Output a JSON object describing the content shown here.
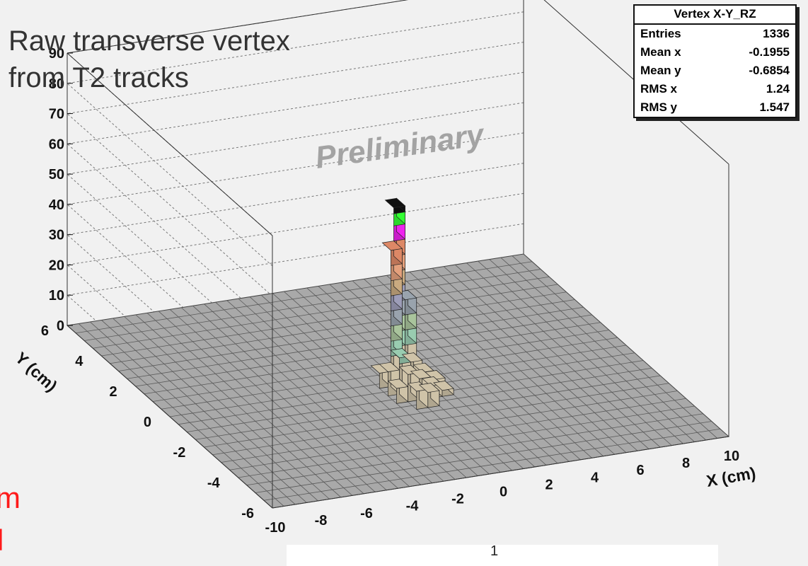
{
  "title": [
    "Raw transverse vertex",
    "from T2 tracks"
  ],
  "watermark": "Preliminary",
  "stats_box": {
    "title": "Vertex X-Y_RZ",
    "rows": [
      {
        "label": "Entries",
        "value": "1336"
      },
      {
        "label": "Mean x",
        "value": "-0.1955"
      },
      {
        "label": "Mean y",
        "value": "-0.6854"
      },
      {
        "label": "RMS x",
        "value": "1.24"
      },
      {
        "label": "RMS y",
        "value": "1.547"
      }
    ]
  },
  "side_text": [
    "m",
    "l"
  ],
  "bottom_fragment": "1",
  "chart_data": {
    "type": "lego",
    "title": "Raw transverse vertex from T2 tracks",
    "xlabel": "X (cm)",
    "ylabel": "Y (cm)",
    "zlabel": "",
    "xlim": [
      -10,
      10
    ],
    "ylim": [
      -6,
      6
    ],
    "zlim": [
      0,
      90
    ],
    "x_ticks": [
      "-10",
      "-8",
      "-6",
      "-4",
      "-2",
      "0",
      "2",
      "4",
      "6",
      "8",
      "10"
    ],
    "y_ticks": [
      "-6",
      "-4",
      "-2",
      "0",
      "2",
      "4",
      "6"
    ],
    "z_ticks": [
      "0",
      "10",
      "20",
      "30",
      "40",
      "50",
      "60",
      "70",
      "80",
      "90"
    ],
    "grid": true,
    "colors": {
      "floor": "#a9a9a9",
      "black": "#111111",
      "green": "#33ff33",
      "magenta": "#ee22ee",
      "salmon": "#dd8866",
      "peach": "#e4a07c",
      "tan": "#c9aa80",
      "lavender": "#9d9db8",
      "grayblue": "#99a3ad",
      "sage": "#a9c49c",
      "mint": "#99ccb0",
      "beige": "#cfc3a8"
    },
    "bins": [
      {
        "x": -0.75,
        "y": -0.5,
        "z": 8
      },
      {
        "x": -0.25,
        "y": -0.5,
        "z": 12
      },
      {
        "x": 0.25,
        "y": -0.5,
        "z": 10
      },
      {
        "x": 0.75,
        "y": -0.5,
        "z": 6
      },
      {
        "x": -0.75,
        "y": -1.0,
        "z": 5
      },
      {
        "x": -0.25,
        "y": -1.0,
        "z": 9
      },
      {
        "x": 0.25,
        "y": -1.0,
        "z": 7
      },
      {
        "x": 0.75,
        "y": -1.0,
        "z": 4
      },
      {
        "x": -0.75,
        "y": 0.0,
        "z": 5
      },
      {
        "x": 0.25,
        "y": 0.0,
        "z": 8
      },
      {
        "x": 0.75,
        "y": 0.0,
        "z": 4
      },
      {
        "x": -0.25,
        "y": 0.0,
        "z": 45
      },
      {
        "x": 0.25,
        "y": 0.5,
        "z": 56
      },
      {
        "x": 0.75,
        "y": 0.5,
        "z": 25
      },
      {
        "x": 0.25,
        "y": -1.5,
        "z": 5
      },
      {
        "x": -0.25,
        "y": -1.5,
        "z": 6
      },
      {
        "x": 1.25,
        "y": -0.5,
        "z": 3
      },
      {
        "x": 1.25,
        "y": -1.0,
        "z": 2
      }
    ]
  }
}
